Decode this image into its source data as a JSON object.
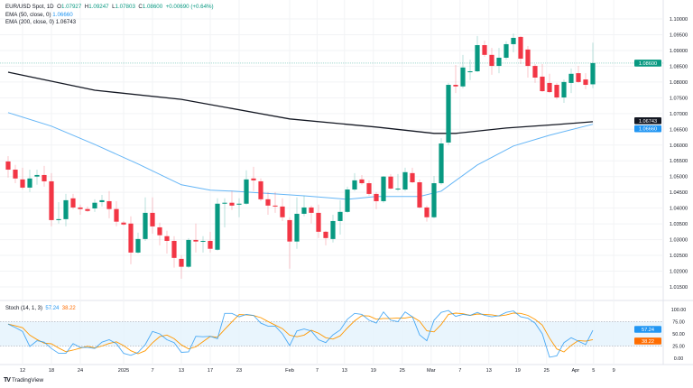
{
  "header": {
    "symbol": "EUR/USD Spot, 1D",
    "open_label": "O",
    "open": "1.07927",
    "high_label": "H",
    "high": "1.09247",
    "low_label": "L",
    "low": "1.07803",
    "close_label": "C",
    "close": "1.08600",
    "change": "+0.00690 (+0.64%)",
    "ema50_label": "EMA (50, close, 0)",
    "ema50_value": "1.06660",
    "ema200_label": "EMA (200, close, 0)",
    "ema200_value": "1.06743"
  },
  "stoch_legend": {
    "label": "Stoch (14, 1, 3)",
    "k": "57.24",
    "d": "38.22"
  },
  "branding": {
    "logo_text": "TradingView"
  },
  "colors": {
    "up": "#089981",
    "down": "#f23645",
    "ema50": "#64b5f6",
    "ema200": "#131722",
    "stoch_k": "#2196f3",
    "stoch_d": "#ff9800",
    "last_price": "#089981",
    "stoch_band": "#e3f2fd"
  },
  "chart_data": [
    {
      "type": "candlestick",
      "title": "EUR/USD Spot, 1D",
      "ylim": [
        1.0125,
        1.1025
      ],
      "grid": true,
      "price_ticks": [
        "1.10000",
        "1.09500",
        "1.09000",
        "1.08500",
        "1.08000",
        "1.07500",
        "1.07000",
        "1.06500",
        "1.06000",
        "1.05500",
        "1.05000",
        "1.04500",
        "1.04000",
        "1.03500",
        "1.03000",
        "1.02500",
        "1.02000",
        "1.01500"
      ],
      "x_ticks": [
        {
          "label": "12",
          "index": 3
        },
        {
          "label": "18",
          "index": 7
        },
        {
          "label": "24",
          "index": 11
        },
        {
          "label": "2025",
          "index": 17
        },
        {
          "label": "7",
          "index": 21
        },
        {
          "label": "13",
          "index": 25
        },
        {
          "label": "17",
          "index": 29
        },
        {
          "label": "23",
          "index": 33
        },
        {
          "label": "Feb",
          "index": 40
        },
        {
          "label": "7",
          "index": 43.8
        },
        {
          "label": "13",
          "index": 47.6
        },
        {
          "label": "19",
          "index": 51.6
        },
        {
          "label": "25",
          "index": 55.6
        },
        {
          "label": "Mar",
          "index": 59.6
        },
        {
          "label": "7",
          "index": 63.6
        },
        {
          "label": "13",
          "index": 67.6
        },
        {
          "label": "19",
          "index": 71.6
        },
        {
          "label": "25",
          "index": 75.6
        },
        {
          "label": "Apr",
          "index": 79.6
        },
        {
          "label": "5",
          "index": 82.1
        },
        {
          "label": "9",
          "index": 84.9
        }
      ],
      "ohlc": [
        [
          1.0548,
          1.0565,
          1.0497,
          1.0522
        ],
        [
          1.0522,
          1.0537,
          1.0479,
          1.0494
        ],
        [
          1.0491,
          1.0528,
          1.0459,
          1.0465
        ],
        [
          1.0465,
          1.0522,
          1.0451,
          1.0494
        ],
        [
          1.05,
          1.0522,
          1.0474,
          1.0505
        ],
        [
          1.0505,
          1.0534,
          1.0468,
          1.0485
        ],
        [
          1.0485,
          1.0511,
          1.0342,
          1.0362
        ],
        [
          1.0362,
          1.0419,
          1.0351,
          1.0365
        ],
        [
          1.0365,
          1.0445,
          1.0342,
          1.0425
        ],
        [
          1.0431,
          1.0445,
          1.0397,
          1.0402
        ],
        [
          1.0402,
          1.0411,
          1.0379,
          1.0397
        ],
        [
          1.0397,
          1.0405,
          1.0388,
          1.0391
        ],
        [
          1.0399,
          1.0428,
          1.0388,
          1.0417
        ],
        [
          1.0419,
          1.0442,
          1.0405,
          1.0425
        ],
        [
          1.0422,
          1.0454,
          1.0368,
          1.0397
        ],
        [
          1.0397,
          1.0422,
          1.0342,
          1.0357
        ],
        [
          1.0354,
          1.0359,
          1.0345,
          1.0348
        ],
        [
          1.0351,
          1.0374,
          1.0222,
          1.0259
        ],
        [
          1.0259,
          1.0322,
          1.0256,
          1.0302
        ],
        [
          1.0302,
          1.0434,
          1.0296,
          1.0385
        ],
        [
          1.0385,
          1.0434,
          1.0319,
          1.0342
        ],
        [
          1.0339,
          1.0354,
          1.0282,
          1.0314
        ],
        [
          1.0311,
          1.0328,
          1.0256,
          1.0296
        ],
        [
          1.0296,
          1.0311,
          1.0211,
          1.0242
        ],
        [
          1.0239,
          1.0251,
          1.0176,
          1.0214
        ],
        [
          1.0214,
          1.0305,
          1.021,
          1.0299
        ],
        [
          1.0299,
          1.0351,
          1.0259,
          1.0294
        ],
        [
          1.0294,
          1.0311,
          1.0259,
          1.0296
        ],
        [
          1.0296,
          1.0325,
          1.0259,
          1.0271
        ],
        [
          1.0268,
          1.0431,
          1.0265,
          1.0414
        ],
        [
          1.0414,
          1.0431,
          1.0339,
          1.0417
        ],
        [
          1.0417,
          1.0454,
          1.0394,
          1.0408
        ],
        [
          1.0411,
          1.0431,
          1.0371,
          1.0414
        ],
        [
          1.0414,
          1.052,
          1.0411,
          1.0491
        ],
        [
          1.0494,
          1.0531,
          1.0454,
          1.0488
        ],
        [
          1.0485,
          1.0494,
          1.0422,
          1.0428
        ],
        [
          1.0428,
          1.0451,
          1.0379,
          1.0408
        ],
        [
          1.0408,
          1.0451,
          1.0385,
          1.0405
        ],
        [
          1.0405,
          1.0431,
          1.0359,
          1.0371
        ],
        [
          1.0362,
          1.0371,
          1.0208,
          1.0294
        ],
        [
          1.0294,
          1.0434,
          1.0271,
          1.0382
        ],
        [
          1.0382,
          1.0439,
          1.0374,
          1.0402
        ],
        [
          1.0402,
          1.0408,
          1.0351,
          1.0385
        ],
        [
          1.0385,
          1.0411,
          1.0305,
          1.0325
        ],
        [
          1.0325,
          1.0328,
          1.0282,
          1.0305
        ],
        [
          1.0302,
          1.0379,
          1.0291,
          1.0359
        ],
        [
          1.0359,
          1.0425,
          1.0316,
          1.0388
        ],
        [
          1.0388,
          1.0468,
          1.0385,
          1.0459
        ],
        [
          1.0459,
          1.0511,
          1.0454,
          1.0488
        ],
        [
          1.0491,
          1.0505,
          1.0474,
          1.0479
        ],
        [
          1.0479,
          1.0488,
          1.0439,
          1.0445
        ],
        [
          1.0445,
          1.0451,
          1.0397,
          1.0422
        ],
        [
          1.0422,
          1.0502,
          1.0417,
          1.05
        ],
        [
          1.05,
          1.0508,
          1.0459,
          1.0462
        ],
        [
          1.0459,
          1.0508,
          1.0454,
          1.0462
        ],
        [
          1.0459,
          1.0528,
          1.0454,
          1.0514
        ],
        [
          1.0511,
          1.0528,
          1.0479,
          1.0482
        ],
        [
          1.0482,
          1.0491,
          1.0399,
          1.0402
        ],
        [
          1.0402,
          1.0408,
          1.0357,
          1.0371
        ],
        [
          1.0371,
          1.0502,
          1.0368,
          1.0479
        ],
        [
          1.0479,
          1.0622,
          1.0474,
          1.0605
        ],
        [
          1.0608,
          1.0797,
          1.06,
          1.0791
        ],
        [
          1.0791,
          1.0854,
          1.0765,
          1.0786
        ],
        [
          1.0786,
          1.0886,
          1.078,
          1.0846
        ],
        [
          1.0831,
          1.0871,
          1.0806,
          1.0834
        ],
        [
          1.0834,
          1.0946,
          1.0831,
          1.0917
        ],
        [
          1.0917,
          1.0931,
          1.088,
          1.0886
        ],
        [
          1.0886,
          1.0908,
          1.0823,
          1.0851
        ],
        [
          1.0851,
          1.0908,
          1.0828,
          1.0877
        ],
        [
          1.0877,
          1.0929,
          1.0871,
          1.092
        ],
        [
          1.092,
          1.0954,
          1.0894,
          1.094
        ],
        [
          1.0943,
          1.0946,
          1.0857,
          1.0874
        ],
        [
          1.0903,
          1.0914,
          1.0814,
          1.0851
        ],
        [
          1.0851,
          1.0857,
          1.0797,
          1.0814
        ],
        [
          1.0817,
          1.0857,
          1.0768,
          1.0771
        ],
        [
          1.0797,
          1.0826,
          1.0765,
          1.0768
        ],
        [
          1.0791,
          1.0797,
          1.0745,
          1.0751
        ],
        [
          1.0751,
          1.0808,
          1.0734,
          1.08
        ],
        [
          1.0797,
          1.0843,
          1.0765,
          1.0826
        ],
        [
          1.0828,
          1.0851,
          1.0797,
          1.08
        ],
        [
          1.0808,
          1.0828,
          1.0777,
          1.0791
        ],
        [
          1.07927,
          1.09247,
          1.07803,
          1.086
        ]
      ],
      "last_price": {
        "value": 1.086,
        "label": "1.08600"
      },
      "ema50": {
        "points": [
          [
            1,
            1.0703
          ],
          [
            7,
            1.066
          ],
          [
            13,
            1.0602
          ],
          [
            19,
            1.054
          ],
          [
            25,
            1.0474
          ],
          [
            29,
            1.0457
          ],
          [
            32,
            1.0454
          ],
          [
            42,
            1.0439
          ],
          [
            48,
            1.0428
          ],
          [
            52,
            1.0437
          ],
          [
            58,
            1.0437
          ],
          [
            61,
            1.0454
          ],
          [
            66,
            1.0537
          ],
          [
            71,
            1.0597
          ],
          [
            76,
            1.0631
          ],
          [
            82,
            1.0666
          ]
        ],
        "label": "1.06660"
      },
      "ema200": {
        "points": [
          [
            1,
            1.0831
          ],
          [
            13,
            1.0774
          ],
          [
            25,
            1.0745
          ],
          [
            40,
            1.0683
          ],
          [
            52,
            1.0657
          ],
          [
            60,
            1.0637
          ],
          [
            63,
            1.0637
          ],
          [
            70,
            1.0654
          ],
          [
            77,
            1.0665
          ],
          [
            82,
            1.0674
          ]
        ],
        "label": "1.06743"
      }
    },
    {
      "type": "line",
      "title": "Stoch (14, 1, 3)",
      "ylim": [
        0,
        100
      ],
      "y_ticks": [
        "100.00",
        "75.00",
        "50.00",
        "25.00",
        "0.00"
      ],
      "band": [
        25,
        75
      ],
      "k": [
        70,
        63,
        55,
        24,
        36,
        33,
        20,
        10,
        10,
        30,
        22,
        22,
        20,
        33,
        38,
        30,
        10,
        6,
        12,
        28,
        55,
        50,
        38,
        32,
        12,
        13,
        45,
        44,
        45,
        40,
        92,
        92,
        85,
        90,
        88,
        72,
        66,
        66,
        50,
        26,
        56,
        60,
        56,
        38,
        32,
        48,
        58,
        80,
        92,
        90,
        78,
        72,
        95,
        78,
        75,
        95,
        85,
        48,
        36,
        78,
        94,
        98,
        86,
        90,
        88,
        94,
        88,
        85,
        87,
        94,
        97,
        85,
        82,
        72,
        50,
        2,
        5,
        32,
        42,
        35,
        28,
        57.24
      ],
      "k_label": "57.24",
      "d_label": "38.22"
    }
  ]
}
